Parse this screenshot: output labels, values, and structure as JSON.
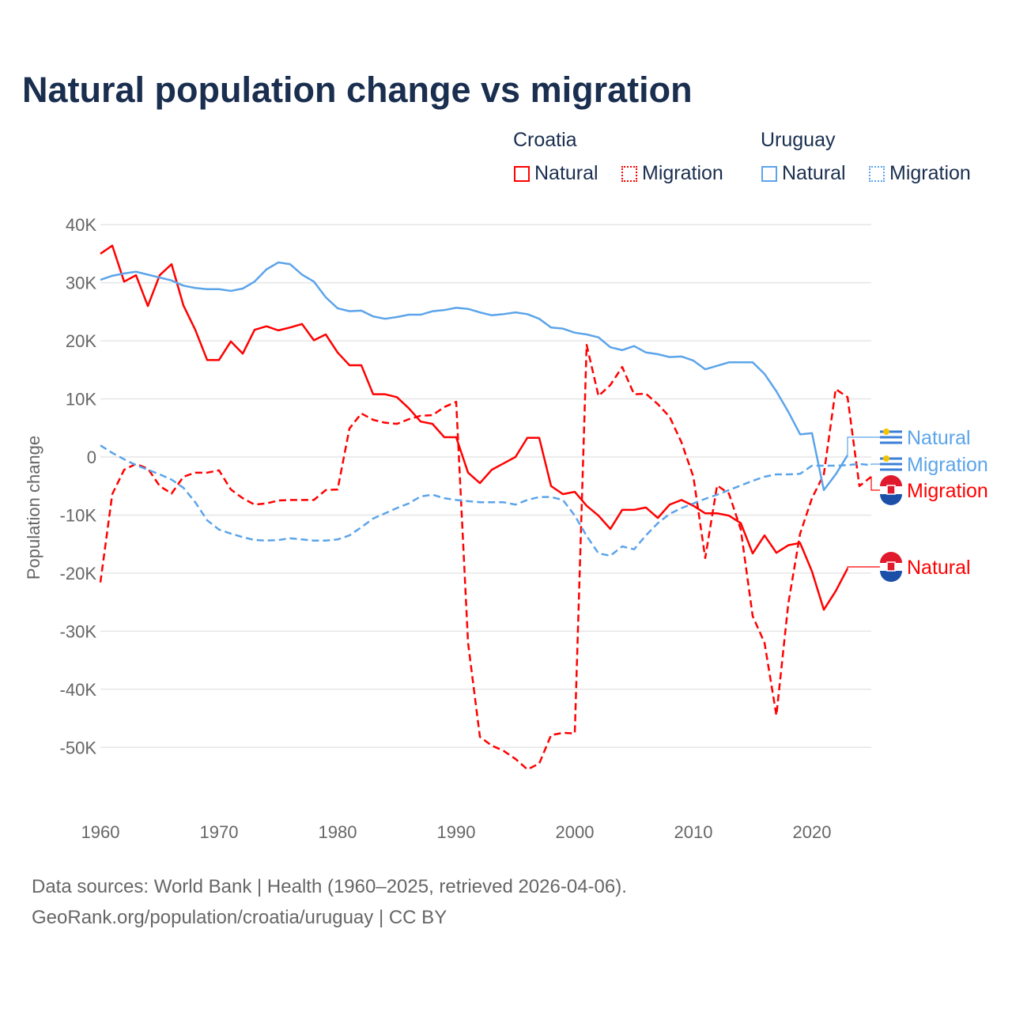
{
  "title": "Natural population change vs migration",
  "legend": {
    "groups": [
      {
        "country": "Croatia",
        "color": "#ff0000",
        "items": [
          "Natural",
          "Migration"
        ]
      },
      {
        "country": "Uruguay",
        "color": "#5ba4ea",
        "items": [
          "Natural",
          "Migration"
        ]
      }
    ]
  },
  "footer": {
    "line1": "Data sources: World Bank | Health (1960–2025, retrieved 2026-04-06).",
    "line2": "GeoRank.org/population/croatia/uruguay | CC BY"
  },
  "chart_data": {
    "type": "line",
    "title": "Natural population change vs migration",
    "xlabel": "",
    "ylabel": "Population change",
    "xlim": [
      1960,
      2025
    ],
    "ylim": [
      -60000,
      40000
    ],
    "x_ticks": [
      "1960",
      "1970",
      "1980",
      "1990",
      "2000",
      "2010",
      "2020"
    ],
    "y_ticks": [
      {
        "value": 40000,
        "label": "40K"
      },
      {
        "value": 30000,
        "label": "30K"
      },
      {
        "value": 20000,
        "label": "20K"
      },
      {
        "value": 10000,
        "label": "10K"
      },
      {
        "value": 0,
        "label": "0"
      },
      {
        "value": -10000,
        "label": "-10K"
      },
      {
        "value": -20000,
        "label": "-20K"
      },
      {
        "value": -30000,
        "label": "-30K"
      },
      {
        "value": -40000,
        "label": "-40K"
      },
      {
        "value": -50000,
        "label": "-50K"
      }
    ],
    "grid": true,
    "legend_position": "top-right",
    "start_year": 1960,
    "series": [
      {
        "name": "Croatia Natural",
        "country": "Croatia",
        "label": "Natural",
        "color": "#ff0000",
        "dash": false,
        "values": [
          35000,
          36400,
          30200,
          31300,
          26000,
          31300,
          33200,
          26100,
          21900,
          16700,
          16700,
          19900,
          17800,
          21900,
          22500,
          21800,
          22300,
          22900,
          20100,
          21100,
          18000,
          15800,
          15800,
          10800,
          10800,
          10300,
          8400,
          6100,
          5700,
          3400,
          3400,
          -2700,
          -4500,
          -2200,
          -1100,
          0,
          3300,
          3300,
          -5000,
          -6400,
          -6000,
          -8400,
          -10100,
          -12400,
          -9100,
          -9100,
          -8700,
          -10500,
          -8200,
          -7400,
          -8400,
          -9700,
          -9700,
          -10100,
          -11400,
          -16600,
          -13500,
          -16500,
          -15200,
          -14800,
          -19700,
          -26300,
          -23100,
          -19200
        ]
      },
      {
        "name": "Croatia Migration",
        "country": "Croatia",
        "label": "Migration",
        "color": "#ff0000",
        "dash": true,
        "values": [
          -21600,
          -6400,
          -2200,
          -1200,
          -2000,
          -5000,
          -6300,
          -3400,
          -2700,
          -2700,
          -2300,
          -5600,
          -7100,
          -8200,
          -8000,
          -7500,
          -7400,
          -7400,
          -7400,
          -5700,
          -5600,
          4900,
          7500,
          6400,
          5900,
          5700,
          6500,
          7100,
          7200,
          8600,
          9500,
          -32000,
          -48200,
          -49700,
          -50600,
          -52000,
          -53800,
          -52800,
          -47900,
          -47500,
          -47600,
          19300,
          10500,
          12400,
          15500,
          10800,
          10900,
          9100,
          6900,
          2500,
          -3400,
          -17400,
          -4900,
          -6300,
          -12500,
          -27400,
          -32000,
          -44500,
          -25300,
          -13200,
          -7100,
          -3000,
          11700,
          10300,
          -5000,
          -3400
        ]
      },
      {
        "name": "Uruguay Natural",
        "country": "Uruguay",
        "label": "Natural",
        "color": "#5ba4ea",
        "dash": false,
        "values": [
          30500,
          31200,
          31600,
          31900,
          31400,
          30900,
          30400,
          29500,
          29100,
          28900,
          28900,
          28600,
          29000,
          30200,
          32300,
          33500,
          33200,
          31400,
          30200,
          27500,
          25600,
          25100,
          25200,
          24200,
          23800,
          24100,
          24500,
          24500,
          25100,
          25300,
          25700,
          25500,
          24900,
          24400,
          24600,
          24900,
          24600,
          23800,
          22300,
          22100,
          21400,
          21100,
          20600,
          18900,
          18400,
          19100,
          18000,
          17700,
          17200,
          17300,
          16600,
          15100,
          15700,
          16300,
          16300,
          16300,
          14300,
          11300,
          7800,
          3900,
          4100,
          -5700,
          -3000,
          300
        ]
      },
      {
        "name": "Uruguay Migration",
        "country": "Uruguay",
        "label": "Migration",
        "color": "#5ba4ea",
        "dash": true,
        "values": [
          2000,
          700,
          -400,
          -1400,
          -2200,
          -3000,
          -3900,
          -5300,
          -7800,
          -10900,
          -12500,
          -13200,
          -13800,
          -14300,
          -14400,
          -14300,
          -14000,
          -14200,
          -14400,
          -14400,
          -14200,
          -13500,
          -12100,
          -10600,
          -9700,
          -8800,
          -8000,
          -6800,
          -6500,
          -7100,
          -7400,
          -7600,
          -7800,
          -7800,
          -7800,
          -8200,
          -7400,
          -6900,
          -6900,
          -7400,
          -10100,
          -13600,
          -16600,
          -17000,
          -15400,
          -15900,
          -13500,
          -11400,
          -9800,
          -8800,
          -8000,
          -7200,
          -6500,
          -5700,
          -4900,
          -4100,
          -3400,
          -3000,
          -3000,
          -2900,
          -1500,
          -1500,
          -1500,
          -1400,
          -1200,
          -1400
        ]
      }
    ],
    "end_labels": [
      {
        "series": "Uruguay Natural",
        "text": "Natural",
        "flag": "uruguay-flag"
      },
      {
        "series": "Uruguay Migration",
        "text": "Migration",
        "flag": "uruguay-flag"
      },
      {
        "series": "Croatia Migration",
        "text": "Migration",
        "flag": "croatia-flag"
      },
      {
        "series": "Croatia Natural",
        "text": "Natural",
        "flag": "croatia-flag"
      }
    ]
  }
}
